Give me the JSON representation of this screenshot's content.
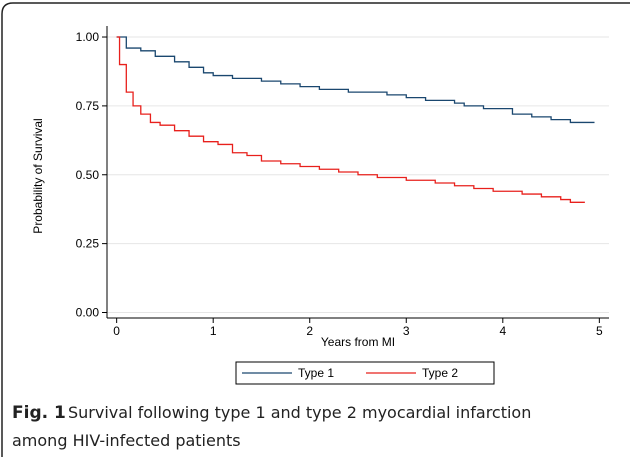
{
  "chart_data": {
    "type": "step",
    "x_label": "Years from MI",
    "y_label": "Probability of Survival",
    "xlim": [
      -0.1,
      5.1
    ],
    "xticks": [
      0,
      1,
      2,
      3,
      4,
      5
    ],
    "ylim": [
      -0.02,
      1.04
    ],
    "yticks": [
      {
        "value": 0,
        "label": "0.00"
      },
      {
        "value": 0.25,
        "label": "0.25"
      },
      {
        "value": 0.5,
        "label": "0.50"
      },
      {
        "value": 0.75,
        "label": "0.75"
      },
      {
        "value": 1,
        "label": "1.00"
      }
    ],
    "grid": true,
    "legend": "bottom",
    "series": [
      {
        "name": "Type 1",
        "color": "#1a476f",
        "x": [
          0,
          0.1,
          0.25,
          0.4,
          0.6,
          0.75,
          0.9,
          1.0,
          1.2,
          1.5,
          1.7,
          1.9,
          2.1,
          2.4,
          2.8,
          3.0,
          3.2,
          3.5,
          3.6,
          3.8,
          4.1,
          4.3,
          4.5,
          4.7,
          4.95
        ],
        "values": [
          1.0,
          0.96,
          0.95,
          0.93,
          0.91,
          0.89,
          0.87,
          0.86,
          0.85,
          0.84,
          0.83,
          0.82,
          0.81,
          0.8,
          0.79,
          0.78,
          0.77,
          0.76,
          0.75,
          0.74,
          0.72,
          0.71,
          0.7,
          0.69,
          0.69
        ]
      },
      {
        "name": "Type 2",
        "color": "#e8201c",
        "x": [
          0,
          0.03,
          0.1,
          0.17,
          0.25,
          0.35,
          0.45,
          0.6,
          0.75,
          0.9,
          1.05,
          1.2,
          1.35,
          1.5,
          1.7,
          1.9,
          2.1,
          2.3,
          2.5,
          2.7,
          3.0,
          3.3,
          3.5,
          3.7,
          3.9,
          4.2,
          4.4,
          4.6,
          4.7,
          4.85
        ],
        "values": [
          1.0,
          0.9,
          0.8,
          0.75,
          0.72,
          0.69,
          0.68,
          0.66,
          0.64,
          0.62,
          0.61,
          0.58,
          0.57,
          0.55,
          0.54,
          0.53,
          0.52,
          0.51,
          0.5,
          0.49,
          0.48,
          0.47,
          0.46,
          0.45,
          0.44,
          0.43,
          0.42,
          0.41,
          0.4,
          0.4
        ]
      }
    ],
    "caption_label": "Fig. 1",
    "caption_line1": "Survival following type 1 and type 2 myocardial infarction",
    "caption_line2": "among HIV-infected patients"
  }
}
